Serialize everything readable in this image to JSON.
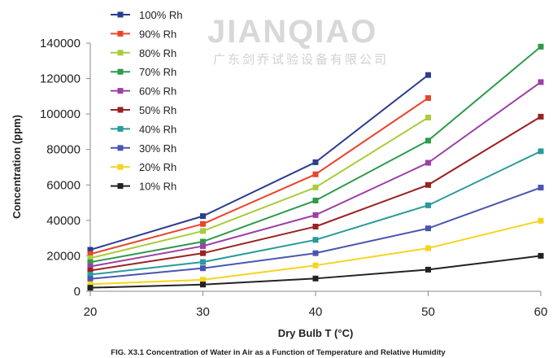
{
  "chart_data": {
    "type": "line",
    "title": "",
    "caption": "FIG. X3.1 Concentration of Water in Air as a Function of Temperature and Relative Humidity",
    "xlabel": "Dry Bulb T (°C)",
    "ylabel": "Concentration (ppm)",
    "x": [
      20,
      30,
      40,
      50,
      60
    ],
    "xlim": [
      20,
      60
    ],
    "ylim": [
      0,
      140000
    ],
    "xticks": [
      "20",
      "30",
      "40",
      "50",
      "60"
    ],
    "yticks": [
      "0",
      "20000",
      "40000",
      "60000",
      "80000",
      "100000",
      "120000",
      "140000"
    ],
    "grid": false,
    "legend_position": "top-left",
    "marker": "square",
    "series": [
      {
        "name": "100% Rh",
        "color": "#2b3d8f",
        "values": [
          23400,
          42400,
          72800,
          122000,
          null
        ]
      },
      {
        "name": "90% Rh",
        "color": "#e8452c",
        "values": [
          21000,
          38000,
          66000,
          109000,
          null
        ]
      },
      {
        "name": "80% Rh",
        "color": "#a9cc3c",
        "values": [
          18700,
          34000,
          58600,
          98000,
          null
        ]
      },
      {
        "name": "70% Rh",
        "color": "#2e9a4c",
        "values": [
          16400,
          28000,
          51200,
          85000,
          138000
        ]
      },
      {
        "name": "60% Rh",
        "color": "#9c3fa6",
        "values": [
          14000,
          25500,
          43000,
          72500,
          118000
        ]
      },
      {
        "name": "50% Rh",
        "color": "#9a2222",
        "values": [
          11700,
          21500,
          36500,
          60000,
          98500
        ]
      },
      {
        "name": "40% Rh",
        "color": "#2a9a9a",
        "values": [
          9400,
          16500,
          29000,
          48500,
          79000
        ]
      },
      {
        "name": "30% Rh",
        "color": "#4a55b0",
        "values": [
          7000,
          13000,
          21500,
          35500,
          58500
        ]
      },
      {
        "name": "20% Rh",
        "color": "#f5d41e",
        "values": [
          4000,
          6500,
          14600,
          24300,
          39800
        ]
      },
      {
        "name": "10% Rh",
        "color": "#222222",
        "values": [
          2000,
          3800,
          7200,
          12200,
          20000
        ]
      }
    ]
  },
  "watermark": {
    "text": "JIANQIAO",
    "subtext": "广东剑乔试验设备有限公司"
  }
}
